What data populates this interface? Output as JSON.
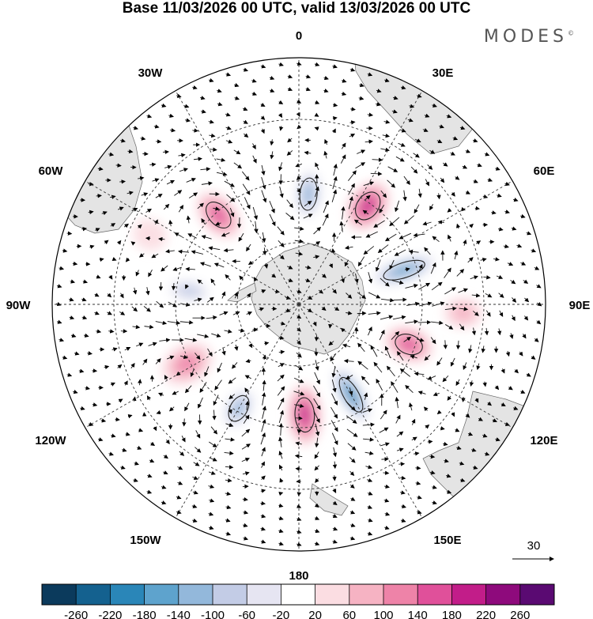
{
  "title": "Base 11/03/2026 00 UTC, valid 13/03/2026 00 UTC",
  "brand": "MODES",
  "brand_mark": "©",
  "longitude_labels": {
    "lon_0": "0",
    "lon_30e": "30E",
    "lon_60e": "60E",
    "lon_90e": "90E",
    "lon_120e": "120E",
    "lon_150e": "150E",
    "lon_180": "180",
    "lon_150w": "150W",
    "lon_120w": "120W",
    "lon_90w": "90W",
    "lon_60w": "60W",
    "lon_30w": "30W"
  },
  "vector_reference": {
    "value": "30"
  },
  "colorbar": {
    "labels": [
      "-260",
      "-220",
      "-180",
      "-140",
      "-100",
      "-60",
      "-20",
      "20",
      "60",
      "100",
      "140",
      "180",
      "220",
      "260"
    ],
    "colors": [
      "#0b3a5c",
      "#14618f",
      "#2a86b8",
      "#5ea3cd",
      "#93b8db",
      "#c3cce6",
      "#e6e5f2",
      "#ffffff",
      "#fbdde2",
      "#f6b3c3",
      "#ee83a8",
      "#e0509a",
      "#c21d89",
      "#8e0a7c",
      "#5a0a72"
    ]
  },
  "anomalies": [
    {
      "lon": 5,
      "lat": -55,
      "value": -150,
      "rx": 8,
      "ry": 15
    },
    {
      "lon": 35,
      "lat": -52,
      "value": 190,
      "rx": 10,
      "ry": 14
    },
    {
      "lon": 72,
      "lat": -55,
      "value": -210,
      "rx": 7,
      "ry": 20
    },
    {
      "lon": 110,
      "lat": -53,
      "value": 170,
      "rx": 9,
      "ry": 13
    },
    {
      "lon": 150,
      "lat": -57,
      "value": -230,
      "rx": 7,
      "ry": 18
    },
    {
      "lon": 177,
      "lat": -55,
      "value": 200,
      "rx": 9,
      "ry": 16
    },
    {
      "lon": -150,
      "lat": -52,
      "value": -150,
      "rx": 8,
      "ry": 13
    },
    {
      "lon": -118,
      "lat": -50,
      "value": 110,
      "rx": 10,
      "ry": 14
    },
    {
      "lon": -83,
      "lat": -55,
      "value": -120,
      "rx": 7,
      "ry": 14
    },
    {
      "lon": -42,
      "lat": -52,
      "value": 150,
      "rx": 9,
      "ry": 14
    },
    {
      "lon": 93,
      "lat": -38,
      "value": 60,
      "rx": 8,
      "ry": 10
    },
    {
      "lon": -65,
      "lat": -38,
      "value": 40,
      "rx": 8,
      "ry": 9
    }
  ]
}
